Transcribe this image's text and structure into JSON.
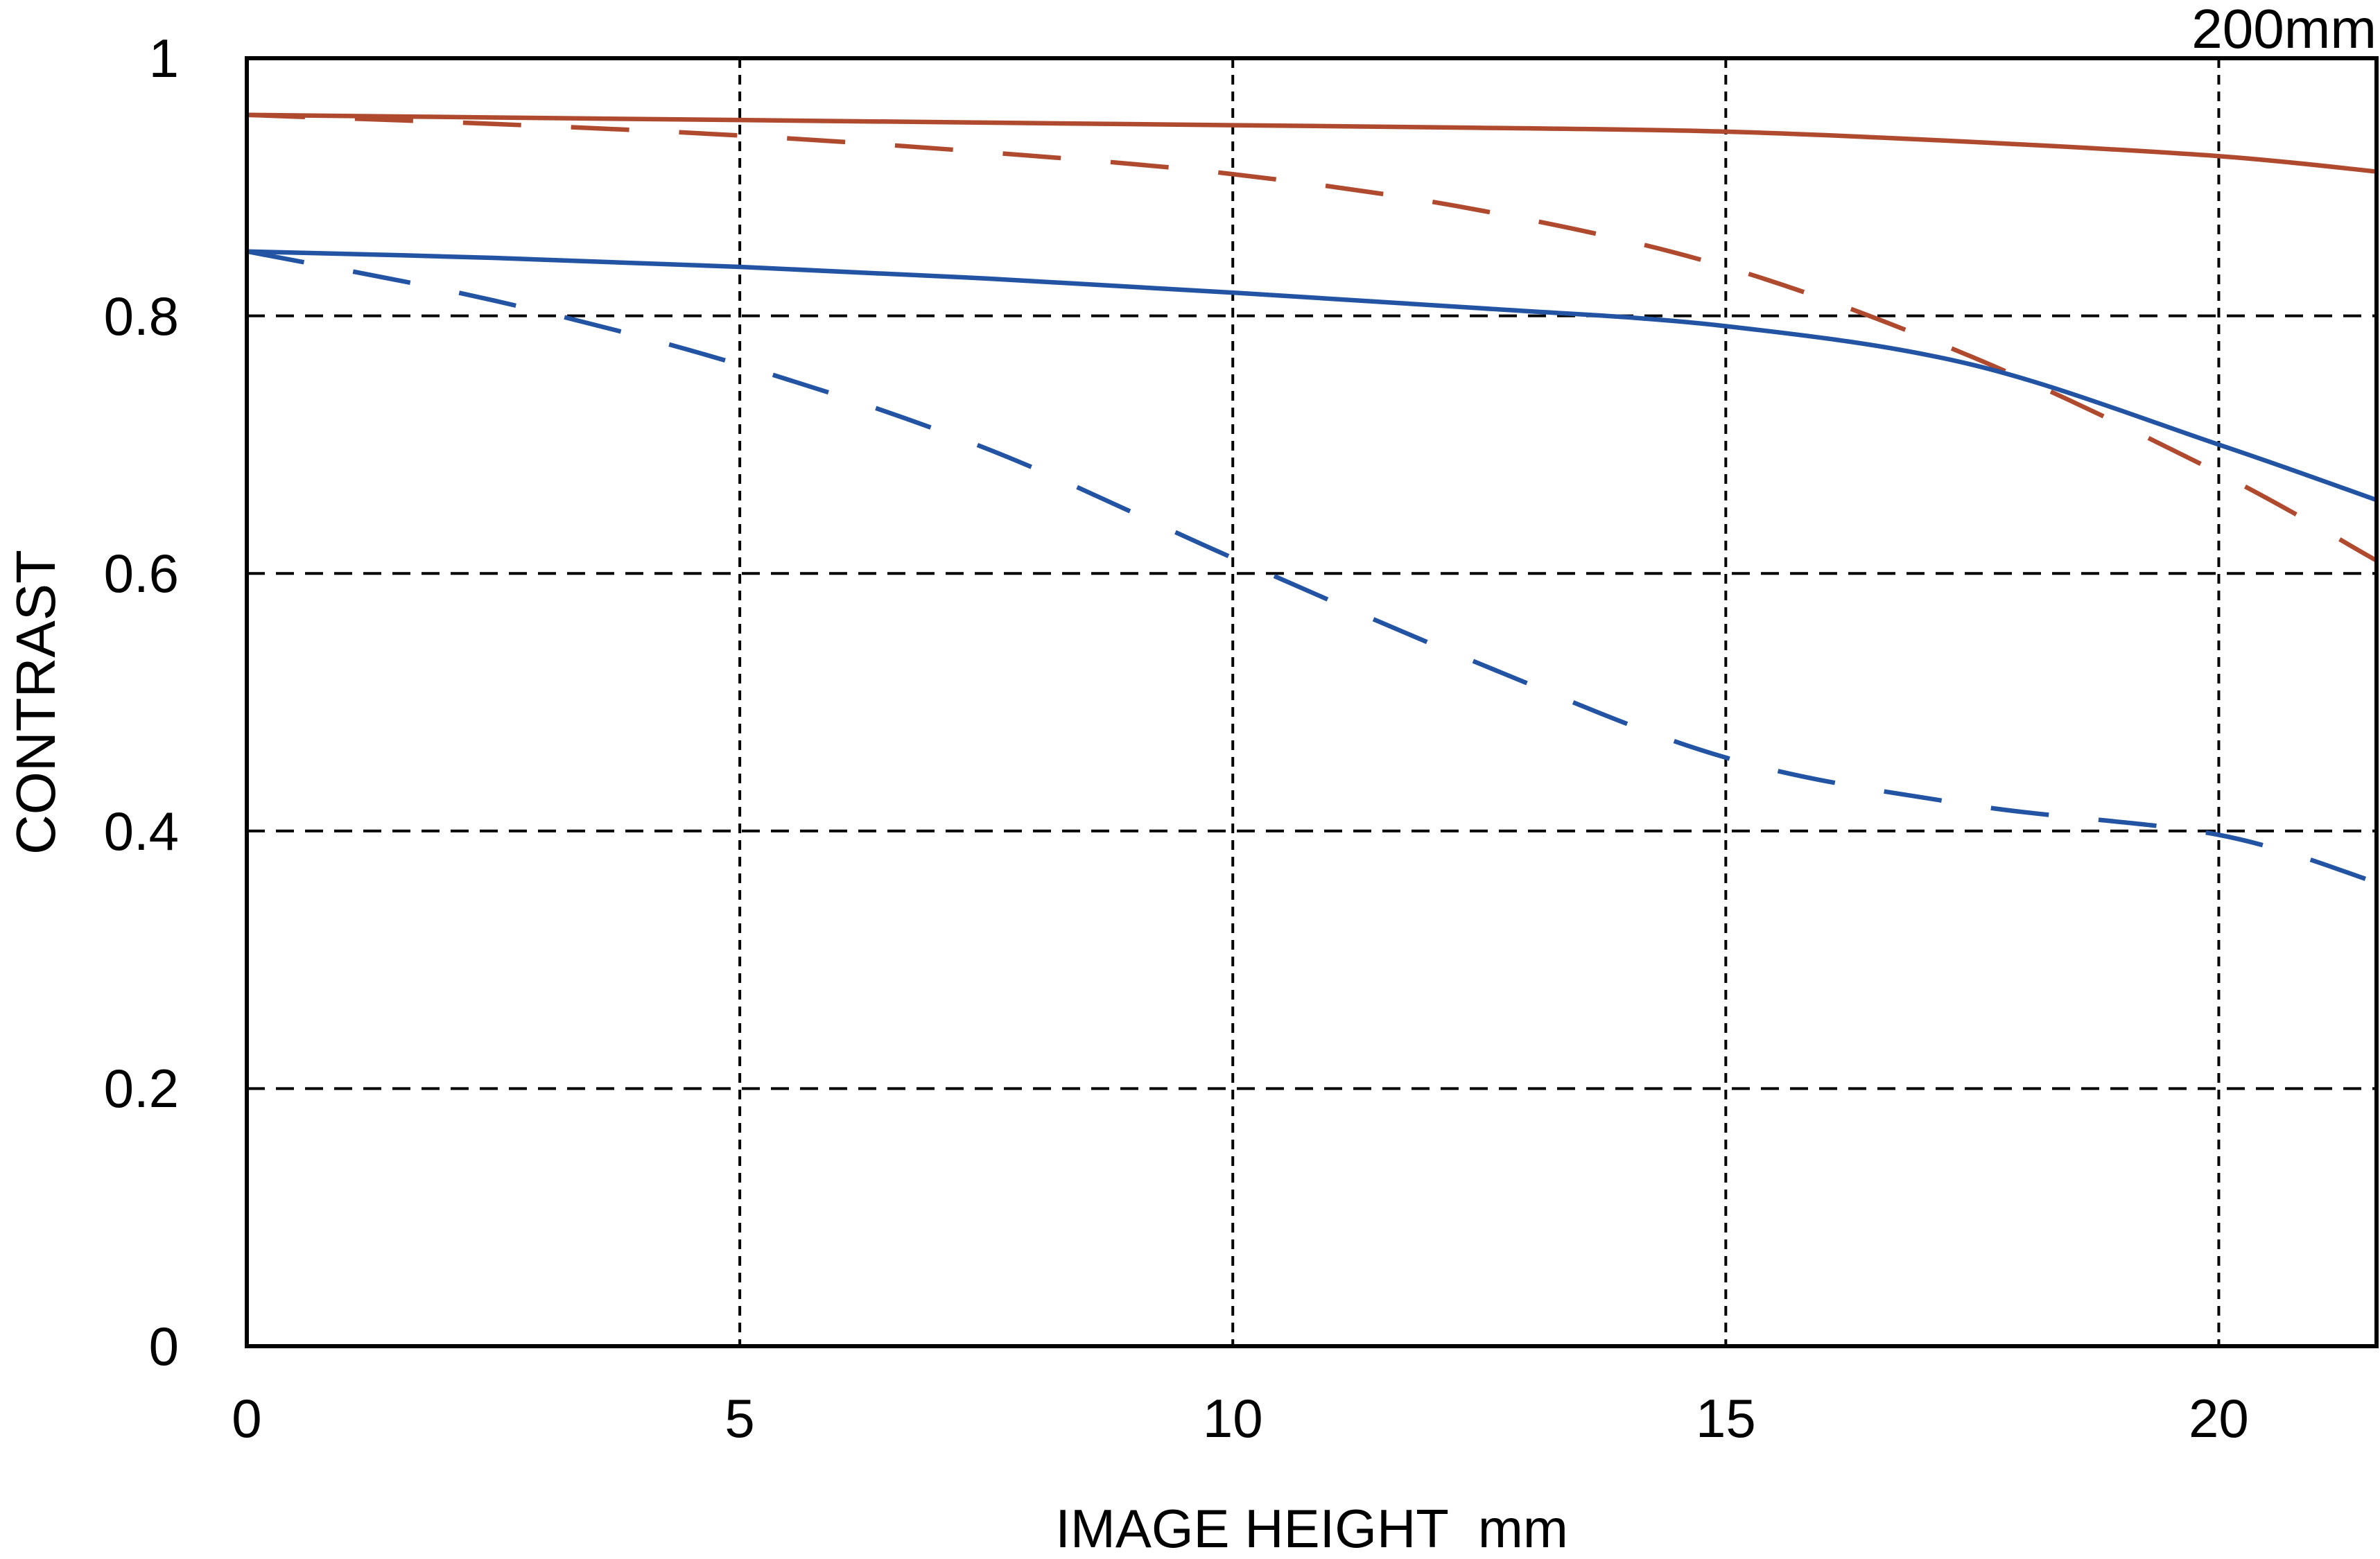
{
  "header": {
    "corner_label": "200mm"
  },
  "colors": {
    "red": "#b04a2f",
    "blue": "#2353a3",
    "axis": "#000000",
    "grid": "#000000",
    "background": "#ffffff"
  },
  "chart_data": {
    "type": "line",
    "title": "200mm",
    "xlabel": "IMAGE HEIGHT  mm",
    "ylabel": "CONTRAST",
    "xlim": [
      0,
      21.6
    ],
    "ylim": [
      0,
      1
    ],
    "x_ticks": [
      0,
      5,
      10,
      15,
      20
    ],
    "y_ticks": [
      0,
      0.2,
      0.4,
      0.6,
      0.8,
      1
    ],
    "x_tick_labels": [
      "0",
      "5",
      "10",
      "15",
      "20"
    ],
    "y_tick_labels": [
      "0",
      "0.2",
      "0.4",
      "0.6",
      "0.8",
      "1"
    ],
    "grid": true,
    "legend": "none",
    "x": [
      0,
      2.5,
      5,
      7.5,
      10,
      12.5,
      15,
      17.5,
      20,
      21.6
    ],
    "series": [
      {
        "name": "red-solid",
        "color": "#b04a2f",
        "dash": "solid",
        "values": [
          0.956,
          0.954,
          0.952,
          0.95,
          0.948,
          0.946,
          0.943,
          0.935,
          0.924,
          0.912
        ]
      },
      {
        "name": "red-dashed",
        "color": "#b04a2f",
        "dash": "dashed",
        "values": [
          0.956,
          0.949,
          0.94,
          0.927,
          0.91,
          0.882,
          0.838,
          0.768,
          0.678,
          0.61
        ]
      },
      {
        "name": "blue-solid",
        "color": "#2353a3",
        "dash": "solid",
        "values": [
          0.85,
          0.845,
          0.838,
          0.829,
          0.818,
          0.806,
          0.792,
          0.762,
          0.7,
          0.657
        ]
      },
      {
        "name": "blue-dashed",
        "color": "#2353a3",
        "dash": "dashed",
        "values": [
          0.85,
          0.812,
          0.762,
          0.697,
          0.612,
          0.53,
          0.457,
          0.42,
          0.397,
          0.36
        ]
      }
    ]
  }
}
